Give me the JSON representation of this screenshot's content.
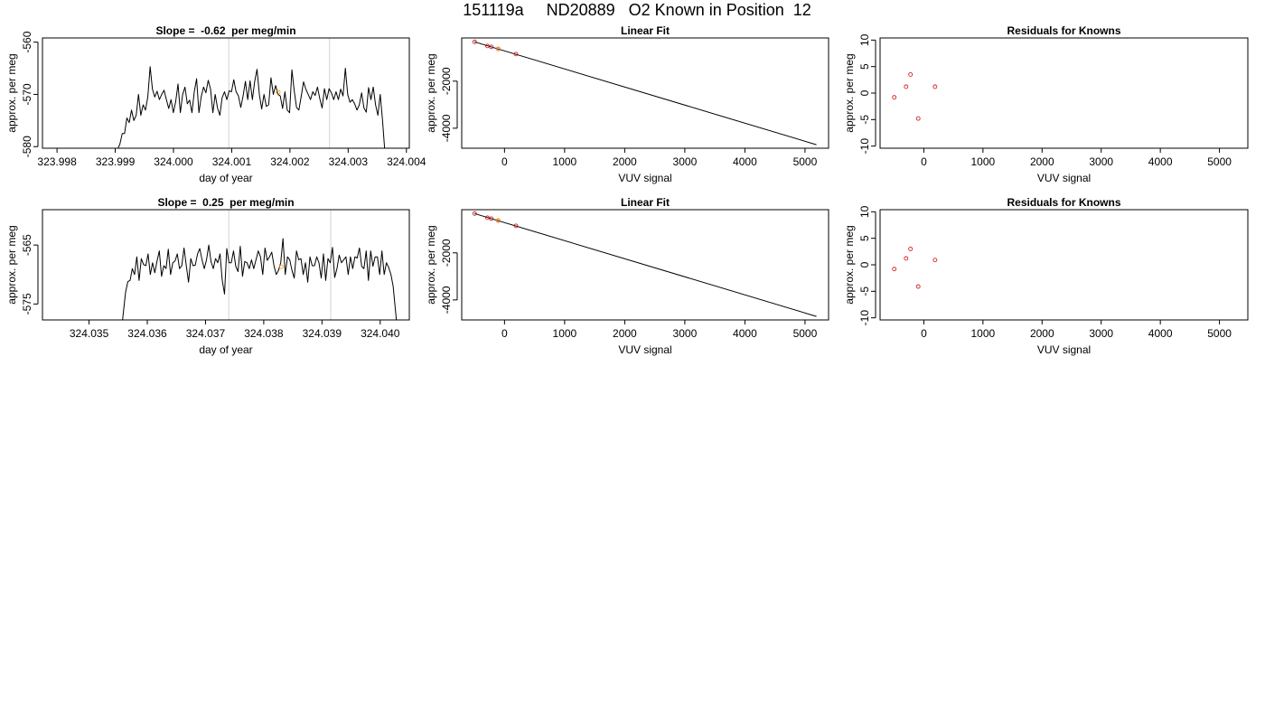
{
  "page_title": "151119a     ND20889   O2 Known in Position  12",
  "chart_data": [
    {
      "type": "line",
      "title": "Slope =  -0.62  per meg/min",
      "xlabel": "day of year",
      "ylabel": "approx. per meg",
      "xlim": [
        323.99775,
        324.00405
      ],
      "ylim": [
        -580.3,
        -559.2
      ],
      "xticks": [
        "323.998",
        "323.999",
        "324.000",
        "324.001",
        "324.002",
        "324.003",
        "324.004"
      ],
      "yticks": [
        "-560",
        "-570",
        "-580"
      ],
      "vlines": [
        324.00095,
        324.00268
      ],
      "series": [
        {
          "color": "#000000",
          "x_start": 323.999,
          "x_end": 324.00367,
          "values": [
            -584.0,
            -580.5,
            -579.5,
            -577.5,
            -577.5,
            -574.5,
            -575.4,
            -573.0,
            -575.0,
            -574.0,
            -570.0,
            -574.0,
            -572.0,
            -573.0,
            -570.5,
            -564.7,
            -569.0,
            -570.5,
            -569.4,
            -571.0,
            -570.0,
            -569.2,
            -571.0,
            -572.7,
            -571.0,
            -573.5,
            -571.4,
            -568.0,
            -573.5,
            -570.0,
            -568.6,
            -571.8,
            -571.1,
            -573.5,
            -569.5,
            -567.0,
            -573.5,
            -570.4,
            -568.6,
            -569.7,
            -567.3,
            -569.0,
            -573.5,
            -570.0,
            -572.6,
            -574.0,
            -570.6,
            -569.5,
            -571.0,
            -569.3,
            -569.5,
            -567.2,
            -569.5,
            -570.3,
            -572.5,
            -570.3,
            -567.5,
            -571.0,
            -567.4,
            -571.0,
            -567.5,
            -565.2,
            -570.0,
            -572.8,
            -570.0,
            -572.3,
            -572.0,
            -566.8,
            -570.0,
            -568.3,
            -570.0,
            -570.3,
            -572.7,
            -569.5,
            -573.0,
            -573.5,
            -565.3,
            -569.3,
            -572.5,
            -573.0,
            -570.4,
            -567.6,
            -569.0,
            -570.0,
            -571.0,
            -569.5,
            -570.2,
            -568.6,
            -570.8,
            -572.6,
            -568.9,
            -571.0,
            -568.9,
            -569.7,
            -571.0,
            -569.5,
            -571.0,
            -569.0,
            -570.3,
            -565.0,
            -570.0,
            -571.5,
            -571.0,
            -571.8,
            -573.0,
            -572.0,
            -569.7,
            -572.6,
            -573.4,
            -568.7,
            -571.0,
            -568.6,
            -572.0,
            -574.0,
            -570.0,
            -575.0,
            -581.0,
            -590.0
          ]
        }
      ],
      "points": [
        {
          "x": 324.0018,
          "y": -569.6,
          "color": "#ff8c00"
        }
      ]
    },
    {
      "type": "scatter",
      "title": "Linear Fit",
      "xlabel": "VUV signal",
      "ylabel": "approx. per meg",
      "xlim": [
        -712,
        5392
      ],
      "ylim": [
        -4850,
        -165
      ],
      "xticks": [
        "0",
        "1000",
        "2000",
        "3000",
        "4000",
        "5000"
      ],
      "yticks": [
        "-2000",
        "-4000"
      ],
      "fit_line": {
        "x": [
          -500,
          5190
        ],
        "y": [
          -330,
          -4700
        ]
      },
      "points": [
        {
          "x": -497,
          "y": -331,
          "color": "#cc0000"
        },
        {
          "x": -285,
          "y": -505,
          "color": "#cc0000"
        },
        {
          "x": -220,
          "y": -545,
          "color": "#cc0000"
        },
        {
          "x": -105,
          "y": -630,
          "color": "#cc0000"
        },
        {
          "x": -105,
          "y": -620,
          "color": "#ff8c00"
        },
        {
          "x": 190,
          "y": -850,
          "color": "#cc0000"
        }
      ]
    },
    {
      "type": "scatter",
      "title": "Residuals for Knowns",
      "xlabel": "VUV signal",
      "ylabel": "approx. per meg",
      "xlim": [
        -740,
        5480
      ],
      "ylim": [
        -10.4,
        10.4
      ],
      "xticks": [
        "0",
        "1000",
        "2000",
        "3000",
        "4000",
        "5000"
      ],
      "yticks": [
        "-10",
        "-5",
        "0",
        "5",
        "10"
      ],
      "points": [
        {
          "x": -500,
          "y": -0.8,
          "color": "#cc0000"
        },
        {
          "x": -300,
          "y": 1.2,
          "color": "#cc0000"
        },
        {
          "x": -225,
          "y": 3.5,
          "color": "#cc0000"
        },
        {
          "x": -95,
          "y": -4.8,
          "color": "#cc0000"
        },
        {
          "x": 190,
          "y": 1.2,
          "color": "#cc0000"
        }
      ]
    },
    {
      "type": "line",
      "title": "Slope =  0.25  per meg/min",
      "xlabel": "day of year",
      "ylabel": "approx. per meg",
      "xlim": [
        324.0342,
        324.0405
      ],
      "ylim": [
        -577.7,
        -559.0
      ],
      "xticks": [
        "324.035",
        "324.036",
        "324.037",
        "324.038",
        "324.039",
        "324.040"
      ],
      "yticks": [
        "-565",
        "-575"
      ],
      "vlines": [
        324.0374,
        324.03915
      ],
      "series": [
        {
          "color": "#000000",
          "x_start": 324.03555,
          "x_end": 324.0403,
          "values": [
            -580.0,
            -576.5,
            -573.0,
            -571.2,
            -571.0,
            -569.0,
            -570.0,
            -567.0,
            -571.0,
            -567.3,
            -568.3,
            -568.5,
            -566.5,
            -570.0,
            -568.0,
            -569.7,
            -567.7,
            -566.0,
            -570.3,
            -568.5,
            -569.0,
            -565.7,
            -570.0,
            -568.0,
            -567.7,
            -566.5,
            -569.0,
            -568.5,
            -565.5,
            -568.5,
            -571.3,
            -567.3,
            -568.5,
            -568.4,
            -566.5,
            -565.6,
            -567.5,
            -569.0,
            -567.5,
            -565.0,
            -567.8,
            -569.0,
            -567.3,
            -568.0,
            -566.5,
            -571.0,
            -573.3,
            -565.6,
            -568.0,
            -568.0,
            -566.0,
            -568.6,
            -569.5,
            -565.2,
            -570.3,
            -567.8,
            -568.0,
            -569.0,
            -567.5,
            -569.0,
            -567.5,
            -566.0,
            -567.0,
            -570.0,
            -565.5,
            -567.6,
            -567.0,
            -566.2,
            -568.5,
            -570.0,
            -569.3,
            -568.0,
            -563.9,
            -570.0,
            -567.0,
            -567.5,
            -569.3,
            -570.6,
            -566.0,
            -567.5,
            -567.3,
            -570.0,
            -568.0,
            -571.3,
            -567.0,
            -568.5,
            -568.5,
            -567.0,
            -568.0,
            -570.6,
            -566.5,
            -571.0,
            -567.3,
            -568.0,
            -565.4,
            -570.5,
            -569.0,
            -566.7,
            -568.0,
            -567.5,
            -567.0,
            -570.0,
            -567.0,
            -569.0,
            -567.0,
            -567.2,
            -565.5,
            -568.6,
            -569.0,
            -566.0,
            -571.0,
            -566.0,
            -568.6,
            -567.0,
            -567.0,
            -570.0,
            -566.0,
            -570.0,
            -568.0,
            -568.8,
            -570.0,
            -572.0,
            -576.0,
            -580.0
          ]
        }
      ],
      "points": [
        {
          "x": 324.0383,
          "y": -568.7,
          "color": "#ff8c00"
        }
      ]
    },
    {
      "type": "scatter",
      "title": "Linear Fit",
      "xlabel": "VUV signal",
      "ylabel": "approx. per meg",
      "xlim": [
        -712,
        5392
      ],
      "ylim": [
        -4850,
        -165
      ],
      "xticks": [
        "0",
        "1000",
        "2000",
        "3000",
        "4000",
        "5000"
      ],
      "yticks": [
        "-2000",
        "-4000"
      ],
      "fit_line": {
        "x": [
          -500,
          5190
        ],
        "y": [
          -330,
          -4700
        ]
      },
      "points": [
        {
          "x": -497,
          "y": -331,
          "color": "#cc0000"
        },
        {
          "x": -285,
          "y": -505,
          "color": "#cc0000"
        },
        {
          "x": -220,
          "y": -545,
          "color": "#cc0000"
        },
        {
          "x": -105,
          "y": -630,
          "color": "#cc0000"
        },
        {
          "x": -105,
          "y": -620,
          "color": "#ff8c00"
        },
        {
          "x": 190,
          "y": -850,
          "color": "#cc0000"
        }
      ]
    },
    {
      "type": "scatter",
      "title": "Residuals for Knowns",
      "xlabel": "VUV signal",
      "ylabel": "approx. per meg",
      "xlim": [
        -740,
        5480
      ],
      "ylim": [
        -10.4,
        10.4
      ],
      "xticks": [
        "0",
        "1000",
        "2000",
        "3000",
        "4000",
        "5000"
      ],
      "yticks": [
        "-10",
        "-5",
        "0",
        "5",
        "10"
      ],
      "points": [
        {
          "x": -500,
          "y": -0.8,
          "color": "#cc0000"
        },
        {
          "x": -300,
          "y": 1.2,
          "color": "#cc0000"
        },
        {
          "x": -225,
          "y": 3.0,
          "color": "#cc0000"
        },
        {
          "x": -95,
          "y": -4.1,
          "color": "#cc0000"
        },
        {
          "x": 190,
          "y": 0.9,
          "color": "#cc0000"
        }
      ]
    }
  ]
}
